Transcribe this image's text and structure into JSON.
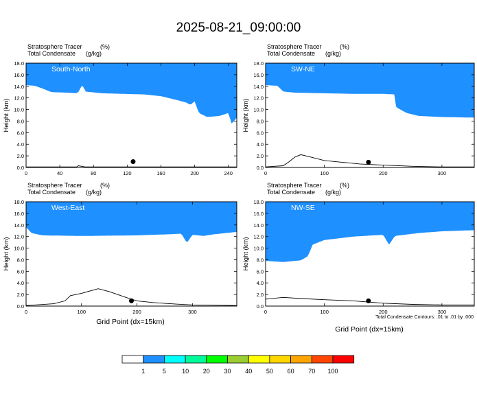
{
  "page": {
    "title": "2025-08-21_09:00:00",
    "xaxis_title": "Grid Point (dx=15km)",
    "contour_note": "Total Condensate Contours: .01 to .01 by .000"
  },
  "colors": [
    "#ffffff",
    "#1e90ff",
    "#00ffff",
    "#00fa9a",
    "#00ff00",
    "#9acd32",
    "#ffff00",
    "#ffd700",
    "#ffa500",
    "#ff4500",
    "#ff0000"
  ],
  "colorbar": {
    "labels": [
      "1",
      "5",
      "10",
      "20",
      "30",
      "40",
      "50",
      "60",
      "70",
      "100"
    ]
  },
  "chart_data": [
    {
      "type": "heatmap",
      "name": "South-North",
      "subtitle_tracer": "Stratosphere Tracer",
      "subtitle_tracer_unit": "(%)",
      "subtitle_condensate": "Total Condensate",
      "subtitle_condensate_unit": "(g/kg)",
      "ylabel": "Height (km)",
      "xlim": [
        0,
        250
      ],
      "ylim": [
        0,
        18
      ],
      "xticks": [
        0,
        40,
        80,
        120,
        160,
        200,
        240
      ],
      "yticks": [
        "0.0",
        "2.0",
        "4.0",
        "6.0",
        "8.0",
        "10.0",
        "12.0",
        "14.0",
        "16.0",
        "18.0"
      ],
      "tropopause_height": [
        [
          0,
          15.6
        ],
        [
          10,
          15.5
        ],
        [
          20,
          15.0
        ],
        [
          30,
          14.4
        ],
        [
          50,
          14.3
        ],
        [
          60,
          14.2
        ],
        [
          63,
          14.6
        ],
        [
          66,
          15.6
        ],
        [
          68,
          15.4
        ],
        [
          70,
          14.5
        ],
        [
          90,
          14.2
        ],
        [
          140,
          14.0
        ],
        [
          160,
          13.7
        ],
        [
          180,
          13.0
        ],
        [
          190,
          12.6
        ],
        [
          195,
          12.2
        ],
        [
          200,
          12.8
        ],
        [
          205,
          10.8
        ],
        [
          215,
          10.1
        ],
        [
          230,
          10.3
        ],
        [
          240,
          10.8
        ],
        [
          244,
          8.9
        ],
        [
          250,
          10.0
        ]
      ],
      "terrain_height": [
        [
          0,
          0.1
        ],
        [
          60,
          0.1
        ],
        [
          62,
          0.3
        ],
        [
          66,
          0.2
        ],
        [
          70,
          0.1
        ],
        [
          250,
          0.1
        ]
      ],
      "marker": {
        "x": 127,
        "y": 1.0
      }
    },
    {
      "type": "heatmap",
      "name": "SW-NE",
      "subtitle_tracer": "Stratosphere Tracer",
      "subtitle_tracer_unit": "(%)",
      "subtitle_condensate": "Total Condensate",
      "subtitle_condensate_unit": "(g/kg)",
      "ylabel": "Height (km)",
      "xlim": [
        0,
        355
      ],
      "ylim": [
        0,
        18
      ],
      "xticks": [
        0,
        100,
        200,
        300
      ],
      "yticks": [
        "0.0",
        "2.0",
        "4.0",
        "6.0",
        "8.0",
        "10.0",
        "12.0",
        "14.0",
        "16.0",
        "18.0"
      ],
      "tropopause_height": [
        [
          0,
          15.6
        ],
        [
          20,
          15.5
        ],
        [
          30,
          14.5
        ],
        [
          50,
          14.3
        ],
        [
          100,
          14.2
        ],
        [
          150,
          14.1
        ],
        [
          200,
          14.1
        ],
        [
          220,
          14.0
        ],
        [
          222,
          11.8
        ],
        [
          240,
          10.8
        ],
        [
          260,
          10.3
        ],
        [
          300,
          10.1
        ],
        [
          355,
          10.0
        ]
      ],
      "terrain_height": [
        [
          0,
          0.1
        ],
        [
          30,
          0.3
        ],
        [
          40,
          1.0
        ],
        [
          50,
          1.8
        ],
        [
          60,
          2.2
        ],
        [
          80,
          1.7
        ],
        [
          100,
          1.2
        ],
        [
          130,
          0.9
        ],
        [
          160,
          0.6
        ],
        [
          200,
          0.4
        ],
        [
          250,
          0.2
        ],
        [
          300,
          0.1
        ],
        [
          355,
          0.1
        ]
      ],
      "marker": {
        "x": 175,
        "y": 0.9
      }
    },
    {
      "type": "heatmap",
      "name": "West-East",
      "subtitle_tracer": "Stratosphere Tracer",
      "subtitle_tracer_unit": "(%)",
      "subtitle_condensate": "Total Condensate",
      "subtitle_condensate_unit": "(g/kg)",
      "ylabel": "Height (km)",
      "xlim": [
        0,
        380
      ],
      "ylim": [
        0,
        18
      ],
      "xticks": [
        0,
        100,
        200,
        300
      ],
      "yticks": [
        "0.0",
        "2.0",
        "4.0",
        "6.0",
        "8.0",
        "10.0",
        "12.0",
        "14.0",
        "16.0",
        "18.0"
      ],
      "tropopause_height": [
        [
          0,
          15.0
        ],
        [
          10,
          14.0
        ],
        [
          30,
          13.6
        ],
        [
          100,
          13.5
        ],
        [
          200,
          13.6
        ],
        [
          260,
          13.8
        ],
        [
          280,
          13.9
        ],
        [
          290,
          12.3
        ],
        [
          300,
          13.7
        ],
        [
          320,
          13.5
        ],
        [
          340,
          13.8
        ],
        [
          380,
          14.2
        ]
      ],
      "terrain_height": [
        [
          0,
          0.1
        ],
        [
          50,
          0.4
        ],
        [
          70,
          0.9
        ],
        [
          80,
          1.8
        ],
        [
          100,
          2.2
        ],
        [
          130,
          3.0
        ],
        [
          150,
          2.5
        ],
        [
          180,
          1.5
        ],
        [
          200,
          0.9
        ],
        [
          230,
          0.6
        ],
        [
          260,
          0.4
        ],
        [
          300,
          0.2
        ],
        [
          380,
          0.1
        ]
      ],
      "marker": {
        "x": 190,
        "y": 0.9
      }
    },
    {
      "type": "heatmap",
      "name": "NW-SE",
      "subtitle_tracer": "Stratosphere Tracer",
      "subtitle_tracer_unit": "(%)",
      "subtitle_condensate": "Total Condensate",
      "subtitle_condensate_unit": "(g/kg)",
      "ylabel": "Height (km)",
      "xlim": [
        0,
        355
      ],
      "ylim": [
        0,
        18
      ],
      "xticks": [
        0,
        100,
        200,
        300
      ],
      "yticks": [
        "0.0",
        "2.0",
        "4.0",
        "6.0",
        "8.0",
        "10.0",
        "12.0",
        "14.0",
        "16.0",
        "18.0"
      ],
      "tropopause_height": [
        [
          0,
          9.2
        ],
        [
          30,
          9.0
        ],
        [
          60,
          9.3
        ],
        [
          72,
          10.0
        ],
        [
          80,
          12.0
        ],
        [
          100,
          12.8
        ],
        [
          150,
          13.4
        ],
        [
          200,
          13.7
        ],
        [
          210,
          12.0
        ],
        [
          220,
          13.5
        ],
        [
          260,
          14.0
        ],
        [
          300,
          14.3
        ],
        [
          355,
          14.5
        ]
      ],
      "terrain_height": [
        [
          0,
          1.2
        ],
        [
          30,
          1.5
        ],
        [
          60,
          1.3
        ],
        [
          100,
          1.1
        ],
        [
          150,
          0.9
        ],
        [
          200,
          0.5
        ],
        [
          250,
          0.3
        ],
        [
          300,
          0.2
        ],
        [
          355,
          0.2
        ]
      ],
      "marker": {
        "x": 175,
        "y": 0.9
      }
    }
  ]
}
